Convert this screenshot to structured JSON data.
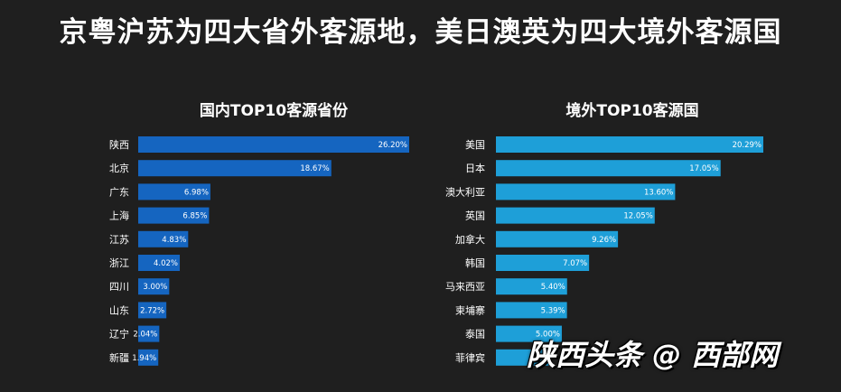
{
  "headline": "京粤沪苏为四大省外客源地，美日澳英为四大境外客源国",
  "watermark": "陕西头条 @ 西部网",
  "chart_data": [
    {
      "type": "bar",
      "orientation": "horizontal",
      "title": "国内TOP10客源省份",
      "categories": [
        "陕西",
        "北京",
        "广东",
        "上海",
        "江苏",
        "浙江",
        "四川",
        "山东",
        "辽宁",
        "新疆"
      ],
      "values": [
        26.2,
        18.67,
        6.98,
        6.85,
        4.83,
        4.02,
        3.0,
        2.72,
        2.04,
        1.94
      ],
      "value_labels": [
        "26.20%",
        "18.67%",
        "6.98%",
        "6.85%",
        "4.83%",
        "4.02%",
        "3.00%",
        "2.72%",
        "2.04%",
        "1.94%"
      ],
      "xlim": [
        0,
        26.2
      ],
      "unit": "%",
      "bar_color": "#1565c0",
      "grid": false,
      "legend": "none"
    },
    {
      "type": "bar",
      "orientation": "horizontal",
      "title": "境外TOP10客源国",
      "categories": [
        "美国",
        "日本",
        "澳大利亚",
        "英国",
        "加拿大",
        "韩国",
        "马来西亚",
        "柬埔寨",
        "泰国",
        "菲律宾"
      ],
      "values": [
        20.29,
        17.05,
        13.6,
        12.05,
        9.26,
        7.07,
        5.4,
        5.39,
        5.0,
        4.0
      ],
      "value_labels": [
        "20.29%",
        "17.05%",
        "13.60%",
        "12.05%",
        "9.26%",
        "7.07%",
        "5.40%",
        "5.39%",
        "5.00%",
        ""
      ],
      "xlim": [
        0,
        20.29
      ],
      "unit": "%",
      "bar_color": "#1e9fd8",
      "grid": false,
      "legend": "none"
    }
  ]
}
